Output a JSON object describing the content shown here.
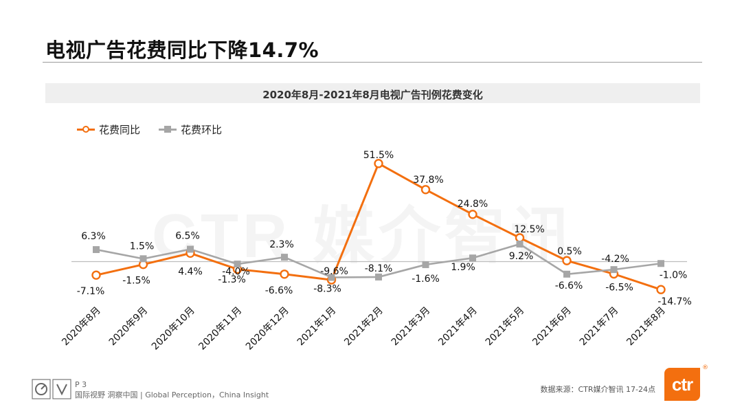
{
  "page": {
    "title": "电视广告花费同比下降14.7%",
    "watermark": "CTR 媒介智讯"
  },
  "chart_data": {
    "type": "line",
    "title": "2020年8月-2021年8月电视广告刊例花费变化",
    "categories": [
      "2020年8月",
      "2020年9月",
      "2020年10月",
      "2020年11月",
      "2020年12月",
      "2021年1月",
      "2021年2月",
      "2021年3月",
      "2021年4月",
      "2021年5月",
      "2021年6月",
      "2021年7月",
      "2021年8月"
    ],
    "series": [
      {
        "name": "花费同比",
        "color": "#f36f0f",
        "marker": "circle",
        "values": [
          -7.1,
          -1.5,
          4.4,
          -4.0,
          -6.6,
          -9.6,
          51.5,
          37.8,
          24.8,
          12.5,
          0.5,
          -6.5,
          -14.7
        ],
        "labels": [
          "-7.1%",
          "-1.5%",
          "4.4%",
          "-4.0%",
          "-6.6%",
          "-9.6%",
          "51.5%",
          "37.8%",
          "24.8%",
          "12.5%",
          "0.5%",
          "-6.5%",
          "-14.7%"
        ]
      },
      {
        "name": "花费环比",
        "color": "#a6a6a6",
        "marker": "square",
        "values": [
          6.3,
          1.5,
          6.5,
          -1.3,
          2.3,
          -8.3,
          -8.1,
          -1.6,
          1.9,
          9.2,
          -6.6,
          -4.2,
          -1.0
        ],
        "labels": [
          "6.3%",
          "1.5%",
          "6.5%",
          "-1.3%",
          "2.3%",
          "-8.3%",
          "-8.1%",
          "-1.6%",
          "1.9%",
          "9.2%",
          "-6.6%",
          "-4.2%",
          "-1.0%"
        ]
      }
    ],
    "ylim": [
      -20,
      60
    ],
    "xlabel": "",
    "ylabel": "",
    "grid": false,
    "legend_position": "top-left"
  },
  "footer": {
    "page_number": "P 3",
    "slogan": "国际视野  洞察中国 | Global Perception，China Insight",
    "source": "数据来源：CTR媒介智讯    17-24点",
    "logo_text": "ctr",
    "logo_mark": "®"
  }
}
